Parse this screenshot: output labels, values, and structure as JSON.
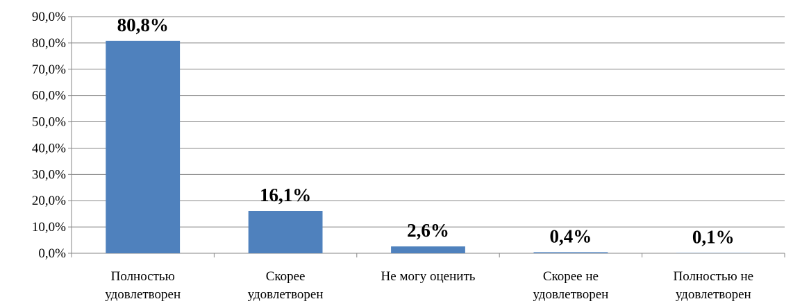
{
  "chart_data": {
    "type": "bar",
    "categories": [
      "Полностью\nудовлетворен",
      "Скорее\nудовлетворен",
      "Не могу оценить",
      "Скорее не\nудовлетворен",
      "Полностью не\nудовлетворен"
    ],
    "values": [
      80.8,
      16.1,
      2.6,
      0.4,
      0.1
    ],
    "value_labels": [
      "80,8%",
      "16,1%",
      "2,6%",
      "0,4%",
      "0,1%"
    ],
    "color": "#4f81bd",
    "ylim": [
      0,
      90
    ],
    "yticks": [
      {
        "value": 0,
        "label": "0,0%"
      },
      {
        "value": 10,
        "label": "10,0%"
      },
      {
        "value": 20,
        "label": "20,0%"
      },
      {
        "value": 30,
        "label": "30,0%"
      },
      {
        "value": 40,
        "label": "40,0%"
      },
      {
        "value": 50,
        "label": "50,0%"
      },
      {
        "value": 60,
        "label": "60,0%"
      },
      {
        "value": 70,
        "label": "70,0%"
      },
      {
        "value": 80,
        "label": "80,0%"
      },
      {
        "value": 90,
        "label": "90,0%"
      }
    ],
    "grid": true
  }
}
